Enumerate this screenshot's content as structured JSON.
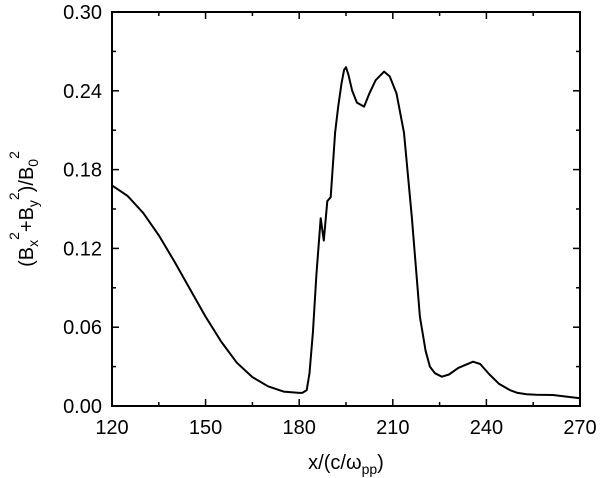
{
  "chart_data": {
    "type": "line",
    "title": "",
    "xlabel_parts": [
      {
        "t": "x/(c/ω"
      },
      {
        "t": "pp",
        "sub": true
      },
      {
        "t": ")"
      }
    ],
    "ylabel_parts": [
      {
        "t": "(B"
      },
      {
        "t": "x",
        "sub": true
      },
      {
        "t": "2",
        "sup": true
      },
      {
        "t": "+B"
      },
      {
        "t": "y",
        "sub": true
      },
      {
        "t": "2",
        "sup": true
      },
      {
        "t": ")/B"
      },
      {
        "t": "0",
        "sub": true
      },
      {
        "t": "2",
        "sup": true
      }
    ],
    "xlim": [
      120,
      270
    ],
    "ylim": [
      0,
      0.3
    ],
    "xticks": [
      "120",
      "150",
      "180",
      "210",
      "240",
      "270"
    ],
    "yticks": [
      "0.00",
      "0.06",
      "0.12",
      "0.18",
      "0.24",
      "0.30"
    ],
    "grid": false,
    "line_color": "#000000",
    "series": [
      {
        "x": [
          120,
          125,
          130,
          135,
          140,
          145,
          150,
          155,
          160,
          165,
          170,
          175,
          180,
          181,
          182.4,
          183.3,
          184.4,
          185.5,
          186.9,
          187.9,
          189.0,
          190.1,
          191.5,
          192.5,
          193.6,
          194.4,
          195.0,
          195.8,
          197,
          198.5,
          200.8,
          202.5,
          204.5,
          207.2,
          209,
          211.2,
          213.6,
          216.1,
          218.7,
          220.5,
          221.9,
          223.5,
          225.7,
          228,
          231,
          235.7,
          238,
          241,
          244,
          247.6,
          250,
          252.9,
          256,
          261.3,
          266,
          270
        ],
        "y": [
          0.168,
          0.16,
          0.147,
          0.13,
          0.11,
          0.089,
          0.068,
          0.049,
          0.033,
          0.022,
          0.015,
          0.011,
          0.01,
          0.01,
          0.012,
          0.025,
          0.056,
          0.1,
          0.143,
          0.126,
          0.156,
          0.159,
          0.208,
          0.228,
          0.246,
          0.256,
          0.258,
          0.252,
          0.24,
          0.231,
          0.228,
          0.238,
          0.248,
          0.2546,
          0.251,
          0.238,
          0.208,
          0.144,
          0.068,
          0.042,
          0.03,
          0.025,
          0.0223,
          0.024,
          0.029,
          0.0337,
          0.032,
          0.024,
          0.017,
          0.012,
          0.01,
          0.0089,
          0.0086,
          0.0084,
          0.007,
          0.0059
        ]
      }
    ]
  }
}
